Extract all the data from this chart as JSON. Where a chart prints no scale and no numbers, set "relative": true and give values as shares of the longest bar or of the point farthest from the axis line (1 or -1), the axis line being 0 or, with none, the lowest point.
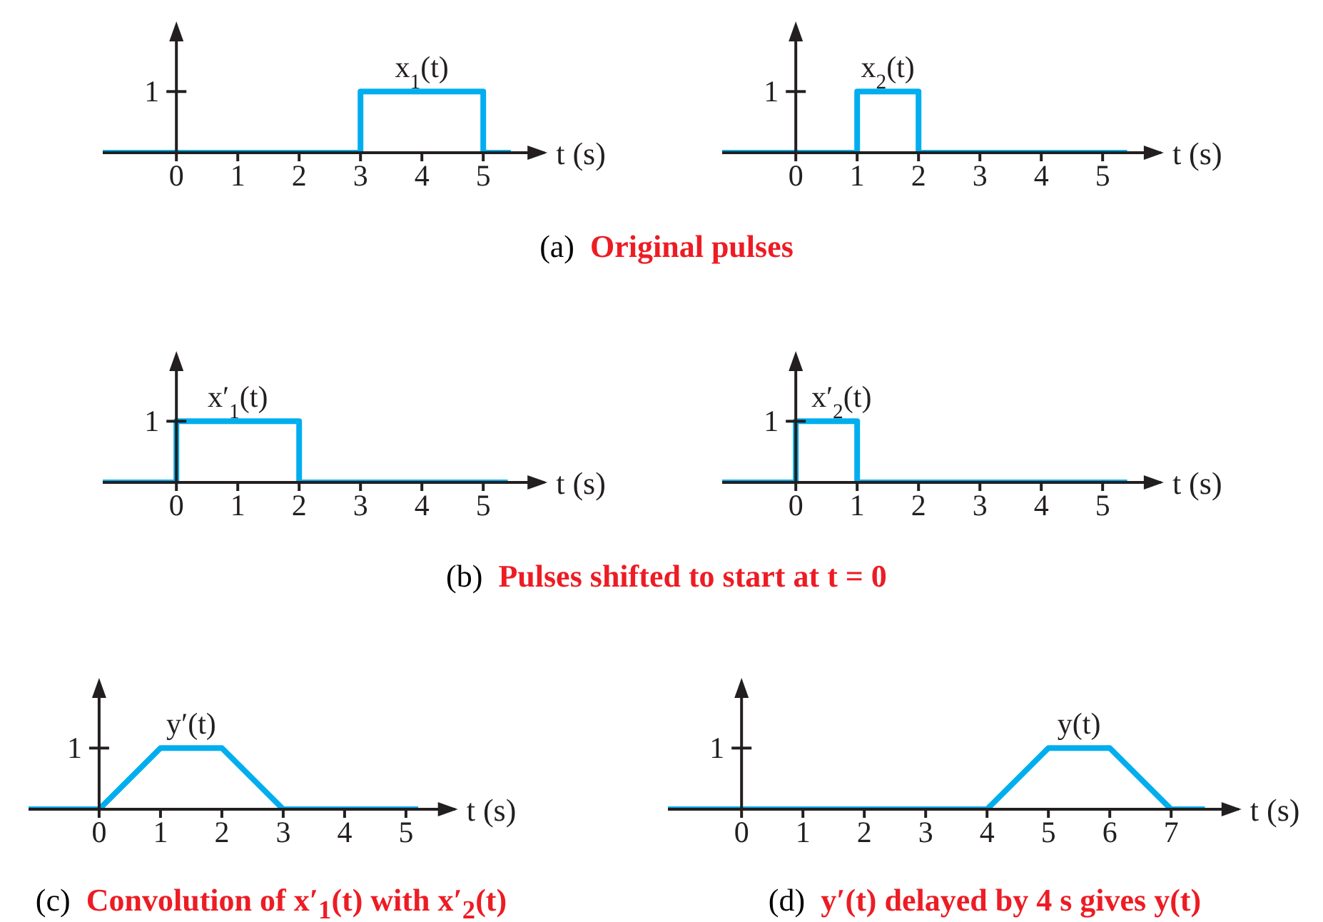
{
  "chart_data": [
    {
      "type": "line",
      "relative": true,
      "xlabel": "t (s)",
      "xlim": [
        -1.2,
        6
      ],
      "xticks": [
        0,
        1,
        2,
        3,
        4,
        5
      ],
      "marker": "none",
      "line_style": "solid",
      "annotations": [
        "1",
        "(a) Original pulses"
      ],
      "series": [
        {
          "name": "x$_{1}$(t)",
          "color": "#00aeef",
          "x": [
            -1.2,
            3,
            3,
            5,
            5,
            5.45
          ],
          "values": [
            0,
            0,
            1,
            1,
            0,
            0
          ]
        }
      ]
    },
    {
      "type": "line",
      "relative": true,
      "xlabel": "t (s)",
      "xlim": [
        -1.2,
        5.95
      ],
      "xticks": [
        0,
        1,
        2,
        3,
        4,
        5
      ],
      "marker": "none",
      "line_style": "solid",
      "annotations": [
        "1"
      ],
      "series": [
        {
          "name": "x$_{2}$(t)",
          "color": "#00aeef",
          "x": [
            -1.2,
            1,
            1,
            2,
            2,
            5.4
          ],
          "values": [
            0,
            0,
            1,
            1,
            0,
            0
          ]
        }
      ]
    },
    {
      "type": "line",
      "relative": true,
      "xlabel": "t (s)",
      "xlim": [
        -1.2,
        6
      ],
      "xticks": [
        0,
        1,
        2,
        3,
        4,
        5
      ],
      "marker": "none",
      "line_style": "solid",
      "annotations": [
        "1",
        "(b) Pulses shifted to start at t = 0"
      ],
      "series": [
        {
          "name": "x′$_{1}$(t)",
          "color": "#00aeef",
          "x": [
            -1.2,
            0,
            0,
            2,
            2,
            5.4
          ],
          "values": [
            0,
            0,
            1,
            1,
            0,
            0
          ]
        }
      ]
    },
    {
      "type": "line",
      "relative": true,
      "xlabel": "t (s)",
      "xlim": [
        -1.2,
        5.95
      ],
      "xticks": [
        0,
        1,
        2,
        3,
        4,
        5
      ],
      "marker": "none",
      "line_style": "solid",
      "annotations": [
        "1"
      ],
      "series": [
        {
          "name": "x′$_{2}$(t)",
          "color": "#00aeef",
          "x": [
            -1.2,
            0,
            0,
            1,
            1,
            5.4
          ],
          "values": [
            0,
            0,
            1,
            1,
            0,
            0
          ]
        }
      ]
    },
    {
      "type": "line",
      "relative": true,
      "xlabel": "t (s)",
      "xlim": [
        -1.15,
        5.8
      ],
      "xticks": [
        0,
        1,
        2,
        3,
        4,
        5
      ],
      "marker": "none",
      "line_style": "solid",
      "annotations": [
        "1",
        "(c) Convolution of x′$_{1}$(t) with x′$_{2}$(t)"
      ],
      "series": [
        {
          "name": "y′(t)",
          "color": "#00aeef",
          "x": [
            -1.15,
            0,
            1,
            2,
            3,
            5.2
          ],
          "values": [
            0,
            0,
            1,
            1,
            0,
            0
          ]
        }
      ]
    },
    {
      "type": "line",
      "relative": true,
      "xlabel": "t (s)",
      "xlim": [
        -1.2,
        8.1
      ],
      "xticks": [
        0,
        1,
        2,
        3,
        4,
        5,
        6,
        7
      ],
      "marker": "none",
      "line_style": "solid",
      "annotations": [
        "1",
        "(d) y′(t) delayed by 4 s gives y(t)"
      ],
      "series": [
        {
          "name": "y(t)",
          "color": "#00aeef",
          "x": [
            -1.2,
            4,
            5,
            6,
            7,
            7.55
          ],
          "values": [
            0,
            0,
            1,
            1,
            0,
            0
          ]
        }
      ]
    }
  ]
}
